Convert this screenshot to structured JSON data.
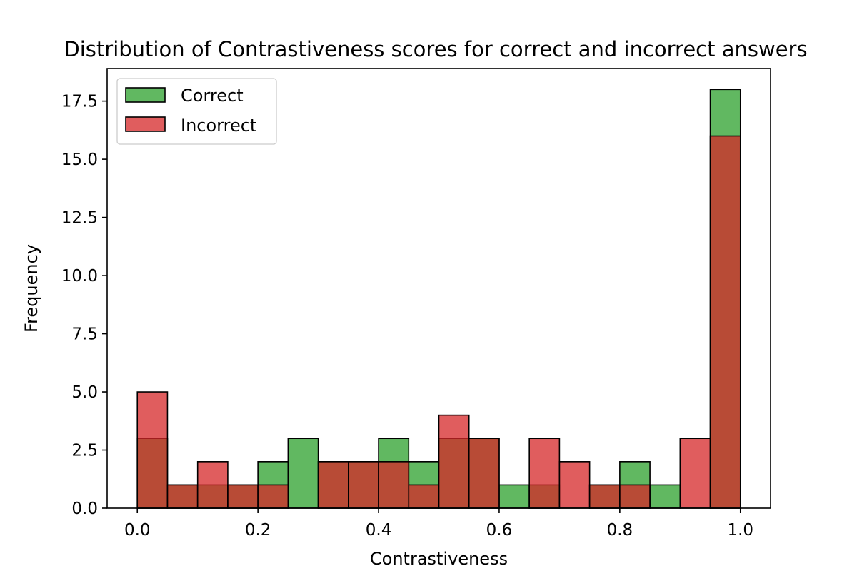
{
  "chart_data": {
    "type": "bar",
    "title": "Distribution of Contrastiveness scores for correct and incorrect answers",
    "xlabel": "Contrastiveness",
    "ylabel": "Frequency",
    "xlim": [
      -0.05,
      1.05
    ],
    "ylim": [
      0,
      18.9
    ],
    "xticks": [
      0.0,
      0.2,
      0.4,
      0.6,
      0.8,
      1.0
    ],
    "xtick_labels": [
      "0.0",
      "0.2",
      "0.4",
      "0.6",
      "0.8",
      "1.0"
    ],
    "yticks": [
      0.0,
      2.5,
      5.0,
      7.5,
      10.0,
      12.5,
      15.0,
      17.5
    ],
    "ytick_labels": [
      "0.0",
      "2.5",
      "5.0",
      "7.5",
      "10.0",
      "12.5",
      "15.0",
      "17.5"
    ],
    "bin_edges": [
      0.0,
      0.05,
      0.1,
      0.15,
      0.2,
      0.25,
      0.3,
      0.35,
      0.4,
      0.45,
      0.5,
      0.55,
      0.6,
      0.65,
      0.7,
      0.75,
      0.8,
      0.85,
      0.9,
      0.95,
      1.0
    ],
    "series": [
      {
        "name": "Correct",
        "color": "#2ca02c",
        "values": [
          3,
          1,
          1,
          1,
          2,
          3,
          2,
          2,
          3,
          2,
          3,
          3,
          1,
          1,
          0,
          1,
          2,
          1,
          0,
          18
        ]
      },
      {
        "name": "Incorrect",
        "color": "#d62728",
        "values": [
          5,
          1,
          2,
          1,
          1,
          0,
          2,
          2,
          2,
          1,
          4,
          3,
          0,
          3,
          2,
          1,
          1,
          0,
          3,
          16
        ]
      }
    ],
    "legend_position": "upper-left",
    "grid": false
  }
}
